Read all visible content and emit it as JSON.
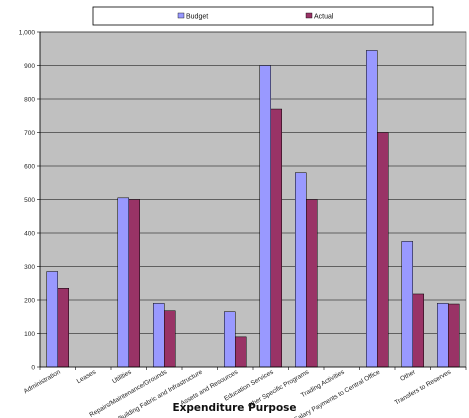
{
  "chart_data": {
    "type": "bar",
    "title": "",
    "xlabel": "Expenditure Purpose",
    "ylabel": "",
    "ylim": [
      0,
      1000
    ],
    "yticks": [
      "0",
      "100",
      "200",
      "300",
      "400",
      "500",
      "600",
      "700",
      "800",
      "900",
      "1,000"
    ],
    "grid": true,
    "legend_position": "top",
    "categories": [
      "Administration",
      "Leases",
      "Utilities",
      "Repairs/Maintenance/Grounds",
      "Building Fabric and Infrastructure",
      "Assets and Resources",
      "Education Services",
      "other Specific Programs",
      "Trading Activities",
      "Salary Payments to Central Office",
      "Other",
      "Transfers to Reserves"
    ],
    "series": [
      {
        "name": "Budget",
        "color": "#9999ff",
        "values": [
          285,
          0,
          505,
          190,
          0,
          165,
          900,
          580,
          0,
          945,
          375,
          190
        ]
      },
      {
        "name": "Actual",
        "color": "#993366",
        "values": [
          235,
          0,
          500,
          168,
          0,
          90,
          770,
          500,
          0,
          700,
          218,
          188
        ]
      }
    ],
    "plot_background": "#c0c0c0"
  }
}
